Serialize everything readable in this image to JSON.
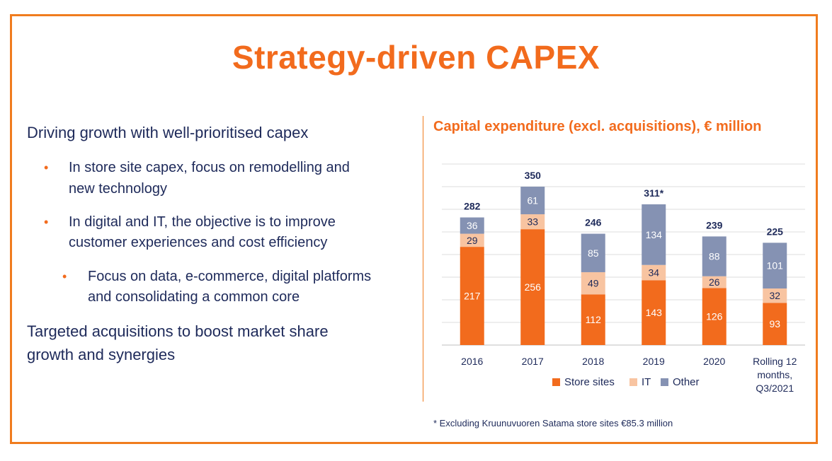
{
  "title": "Strategy-driven CAPEX",
  "left": {
    "heading1": "Driving growth with well-prioritised capex",
    "bullet1": [
      "In store site capex, focus on remodelling and",
      "new technology"
    ],
    "bullet2": [
      "In digital and IT, the objective is to improve",
      "customer experiences and cost efficiency"
    ],
    "subbullet": [
      "Focus on data, e-commerce, digital platforms",
      "and consolidating a common core"
    ],
    "heading2": [
      "Targeted acquisitions to boost market share",
      "growth and synergies"
    ],
    "bullet_marker": "•"
  },
  "chart_title": "Capital expenditure (excl. acquisitions), € million",
  "footnote": "* Excluding Kruunuvuoren Satama store sites €85.3 million",
  "colors": {
    "accent": "#f26b1d",
    "store_sites": "#f26b1d",
    "it": "#f8c4a1",
    "other": "#8592b3",
    "text": "#1e2a5a"
  },
  "chart_data": {
    "type": "bar",
    "stacked": true,
    "categories": [
      "2016",
      "2017",
      "2018",
      "2019",
      "2020",
      "Rolling 12 months, Q3/2021"
    ],
    "category_lines": [
      [
        "2016"
      ],
      [
        "2017"
      ],
      [
        "2018"
      ],
      [
        "2019"
      ],
      [
        "2020"
      ],
      [
        "Rolling 12",
        "months,",
        "Q3/2021"
      ]
    ],
    "series": [
      {
        "name": "Store sites",
        "values": [
          217,
          256,
          112,
          143,
          126,
          93
        ]
      },
      {
        "name": "IT",
        "values": [
          29,
          33,
          49,
          34,
          26,
          32
        ]
      },
      {
        "name": "Other",
        "values": [
          36,
          61,
          85,
          134,
          88,
          101
        ]
      }
    ],
    "totals": [
      "282",
      "350",
      "246",
      "311*",
      "239",
      "225"
    ],
    "ylim": [
      0,
      400
    ],
    "grid": true,
    "legend": "bottom"
  }
}
